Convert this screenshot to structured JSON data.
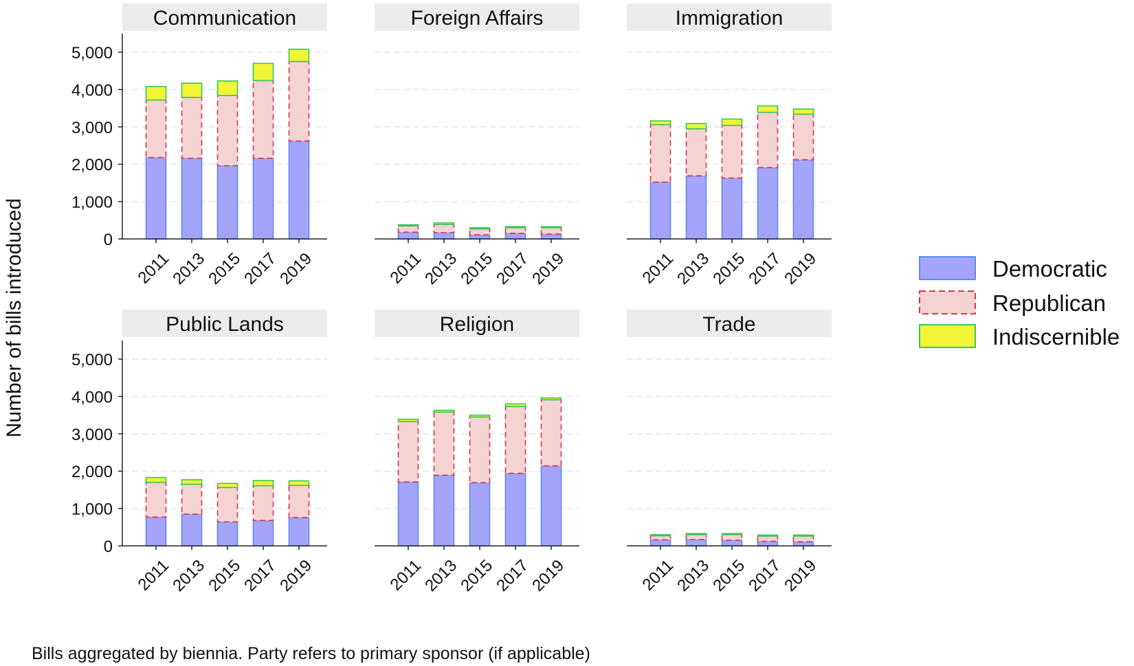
{
  "chart_data": {
    "type": "bar",
    "stacked": true,
    "ylabel": "Number of bills introduced",
    "caption": "Bills aggregated by biennia. Party refers to primary sponsor (if applicable)",
    "categories": [
      "2011",
      "2013",
      "2015",
      "2017",
      "2019"
    ],
    "ylim": [
      0,
      5500
    ],
    "yticks": [
      0,
      1000,
      2000,
      3000,
      4000,
      5000
    ],
    "ytick_labels": [
      "0",
      "1,000",
      "2,000",
      "3,000",
      "4,000",
      "5,000"
    ],
    "legend": [
      {
        "name": "Democratic",
        "fill": "#a4a4fa",
        "stroke": "#5a8cf0",
        "dashed": false
      },
      {
        "name": "Republican",
        "fill": "#f5d3d3",
        "stroke": "#e0304a",
        "dashed": true
      },
      {
        "name": "Indiscernible",
        "fill": "#f0f536",
        "stroke": "#34c85a",
        "dashed": false
      }
    ],
    "panels": [
      {
        "title": "Communication",
        "series": [
          {
            "name": "Democratic",
            "values": [
              2180,
              2160,
              1960,
              2160,
              2620
            ]
          },
          {
            "name": "Republican",
            "values": [
              1540,
              1630,
              1880,
              2080,
              2130
            ]
          },
          {
            "name": "Indiscernible",
            "values": [
              360,
              380,
              390,
              460,
              330
            ]
          }
        ]
      },
      {
        "title": "Foreign Affairs",
        "series": [
          {
            "name": "Democratic",
            "values": [
              180,
              170,
              110,
              150,
              130
            ]
          },
          {
            "name": "Republican",
            "values": [
              170,
              220,
              160,
              150,
              170
            ]
          },
          {
            "name": "Indiscernible",
            "values": [
              30,
              40,
              30,
              30,
              30
            ]
          }
        ]
      },
      {
        "title": "Immigration",
        "series": [
          {
            "name": "Democratic",
            "values": [
              1520,
              1690,
              1630,
              1910,
              2120
            ]
          },
          {
            "name": "Republican",
            "values": [
              1540,
              1260,
              1410,
              1480,
              1220
            ]
          },
          {
            "name": "Indiscernible",
            "values": [
              100,
              140,
              170,
              170,
              140
            ]
          }
        ]
      },
      {
        "title": "Public Lands",
        "series": [
          {
            "name": "Democratic",
            "values": [
              770,
              850,
              640,
              680,
              760
            ]
          },
          {
            "name": "Republican",
            "values": [
              930,
              800,
              920,
              930,
              860
            ]
          },
          {
            "name": "Indiscernible",
            "values": [
              130,
              120,
              110,
              140,
              120
            ]
          }
        ]
      },
      {
        "title": "Religion",
        "series": [
          {
            "name": "Democratic",
            "values": [
              1710,
              1890,
              1690,
              1940,
              2140
            ]
          },
          {
            "name": "Republican",
            "values": [
              1620,
              1690,
              1760,
              1790,
              1770
            ]
          },
          {
            "name": "Indiscernible",
            "values": [
              60,
              50,
              50,
              70,
              50
            ]
          }
        ]
      },
      {
        "title": "Trade",
        "series": [
          {
            "name": "Democratic",
            "values": [
              160,
              170,
              150,
              120,
              110
            ]
          },
          {
            "name": "Republican",
            "values": [
              110,
              130,
              150,
              140,
              150
            ]
          },
          {
            "name": "Indiscernible",
            "values": [
              30,
              30,
              30,
              30,
              30
            ]
          }
        ]
      }
    ]
  }
}
